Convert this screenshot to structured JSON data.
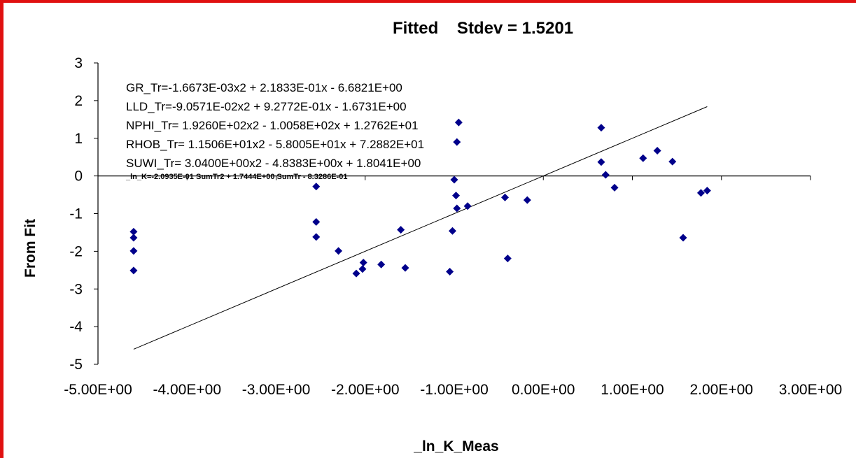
{
  "chart_data": {
    "type": "scatter",
    "title": "Fitted    Stdev = 1.5201",
    "xlabel": "_ln_K_Meas",
    "ylabel": "From Fit",
    "xlim": [
      -5,
      3
    ],
    "ylim": [
      -5,
      3
    ],
    "x_ticks": [
      -5,
      -4,
      -3,
      -2,
      -1,
      0,
      1,
      2,
      3
    ],
    "x_tick_labels": [
      "-5.00E+00",
      "-4.00E+00",
      "-3.00E+00",
      "-2.00E+00",
      "-1.00E+00",
      "0.00E+00",
      "1.00E+00",
      "2.00E+00",
      "3.00E+00"
    ],
    "y_ticks": [
      3,
      2,
      1,
      0,
      -1,
      -2,
      -3,
      -4,
      -5
    ],
    "y_tick_labels": [
      "3",
      "2",
      "1",
      "0",
      "-1",
      "-2",
      "-3",
      "-4",
      "-5"
    ],
    "grid": false,
    "marker_color": "#00008B",
    "line_color": "#000000",
    "trend_line": {
      "x": [
        -4.6,
        1.84
      ],
      "y": [
        -4.6,
        1.84
      ]
    },
    "annotations": [
      "GR_Tr=-1.6673E-03x2 + 2.1833E-01x - 6.6821E+00",
      "LLD_Tr=-9.0571E-02x2 + 9.2772E-01x - 1.6731E+00",
      "NPHI_Tr= 1.9260E+02x2 - 1.0058E+02x + 1.2762E+01",
      "RHOB_Tr= 1.1506E+01x2 - 5.8005E+01x + 7.2882E+01",
      "SUWI_Tr= 3.0400E+00x2 - 4.8383E+00x + 1.8041E+00"
    ],
    "annotation_small": "_ln_K=-2.0935E-01 SumTr2 + 1.7444E+00 SumTr - 8.3286E-01",
    "points": [
      {
        "x": -4.6,
        "y": -1.48
      },
      {
        "x": -4.6,
        "y": -1.64
      },
      {
        "x": -4.6,
        "y": -1.99
      },
      {
        "x": -4.6,
        "y": -2.51
      },
      {
        "x": -2.55,
        "y": -0.28
      },
      {
        "x": -2.55,
        "y": -1.22
      },
      {
        "x": -2.55,
        "y": -1.62
      },
      {
        "x": -2.3,
        "y": -1.99
      },
      {
        "x": -2.1,
        "y": -2.59
      },
      {
        "x": -2.02,
        "y": -2.3
      },
      {
        "x": -2.03,
        "y": -2.47
      },
      {
        "x": -1.82,
        "y": -2.35
      },
      {
        "x": -1.6,
        "y": -1.43
      },
      {
        "x": -1.55,
        "y": -2.44
      },
      {
        "x": -1.05,
        "y": -2.54
      },
      {
        "x": -1.02,
        "y": -1.46
      },
      {
        "x": -1.0,
        "y": -0.1
      },
      {
        "x": -0.98,
        "y": -0.52
      },
      {
        "x": -0.97,
        "y": -0.86
      },
      {
        "x": -0.97,
        "y": 0.9
      },
      {
        "x": -0.95,
        "y": 1.42
      },
      {
        "x": -0.85,
        "y": -0.8
      },
      {
        "x": -0.43,
        "y": -0.57
      },
      {
        "x": -0.4,
        "y": -2.19
      },
      {
        "x": -0.18,
        "y": -0.64
      },
      {
        "x": 0.65,
        "y": 1.28
      },
      {
        "x": 0.65,
        "y": 0.37
      },
      {
        "x": 0.7,
        "y": 0.03
      },
      {
        "x": 0.8,
        "y": -0.31
      },
      {
        "x": 1.12,
        "y": 0.47
      },
      {
        "x": 1.28,
        "y": 0.67
      },
      {
        "x": 1.45,
        "y": 0.38
      },
      {
        "x": 1.57,
        "y": -1.64
      },
      {
        "x": 1.77,
        "y": -0.45
      },
      {
        "x": 1.84,
        "y": -0.39
      }
    ]
  }
}
